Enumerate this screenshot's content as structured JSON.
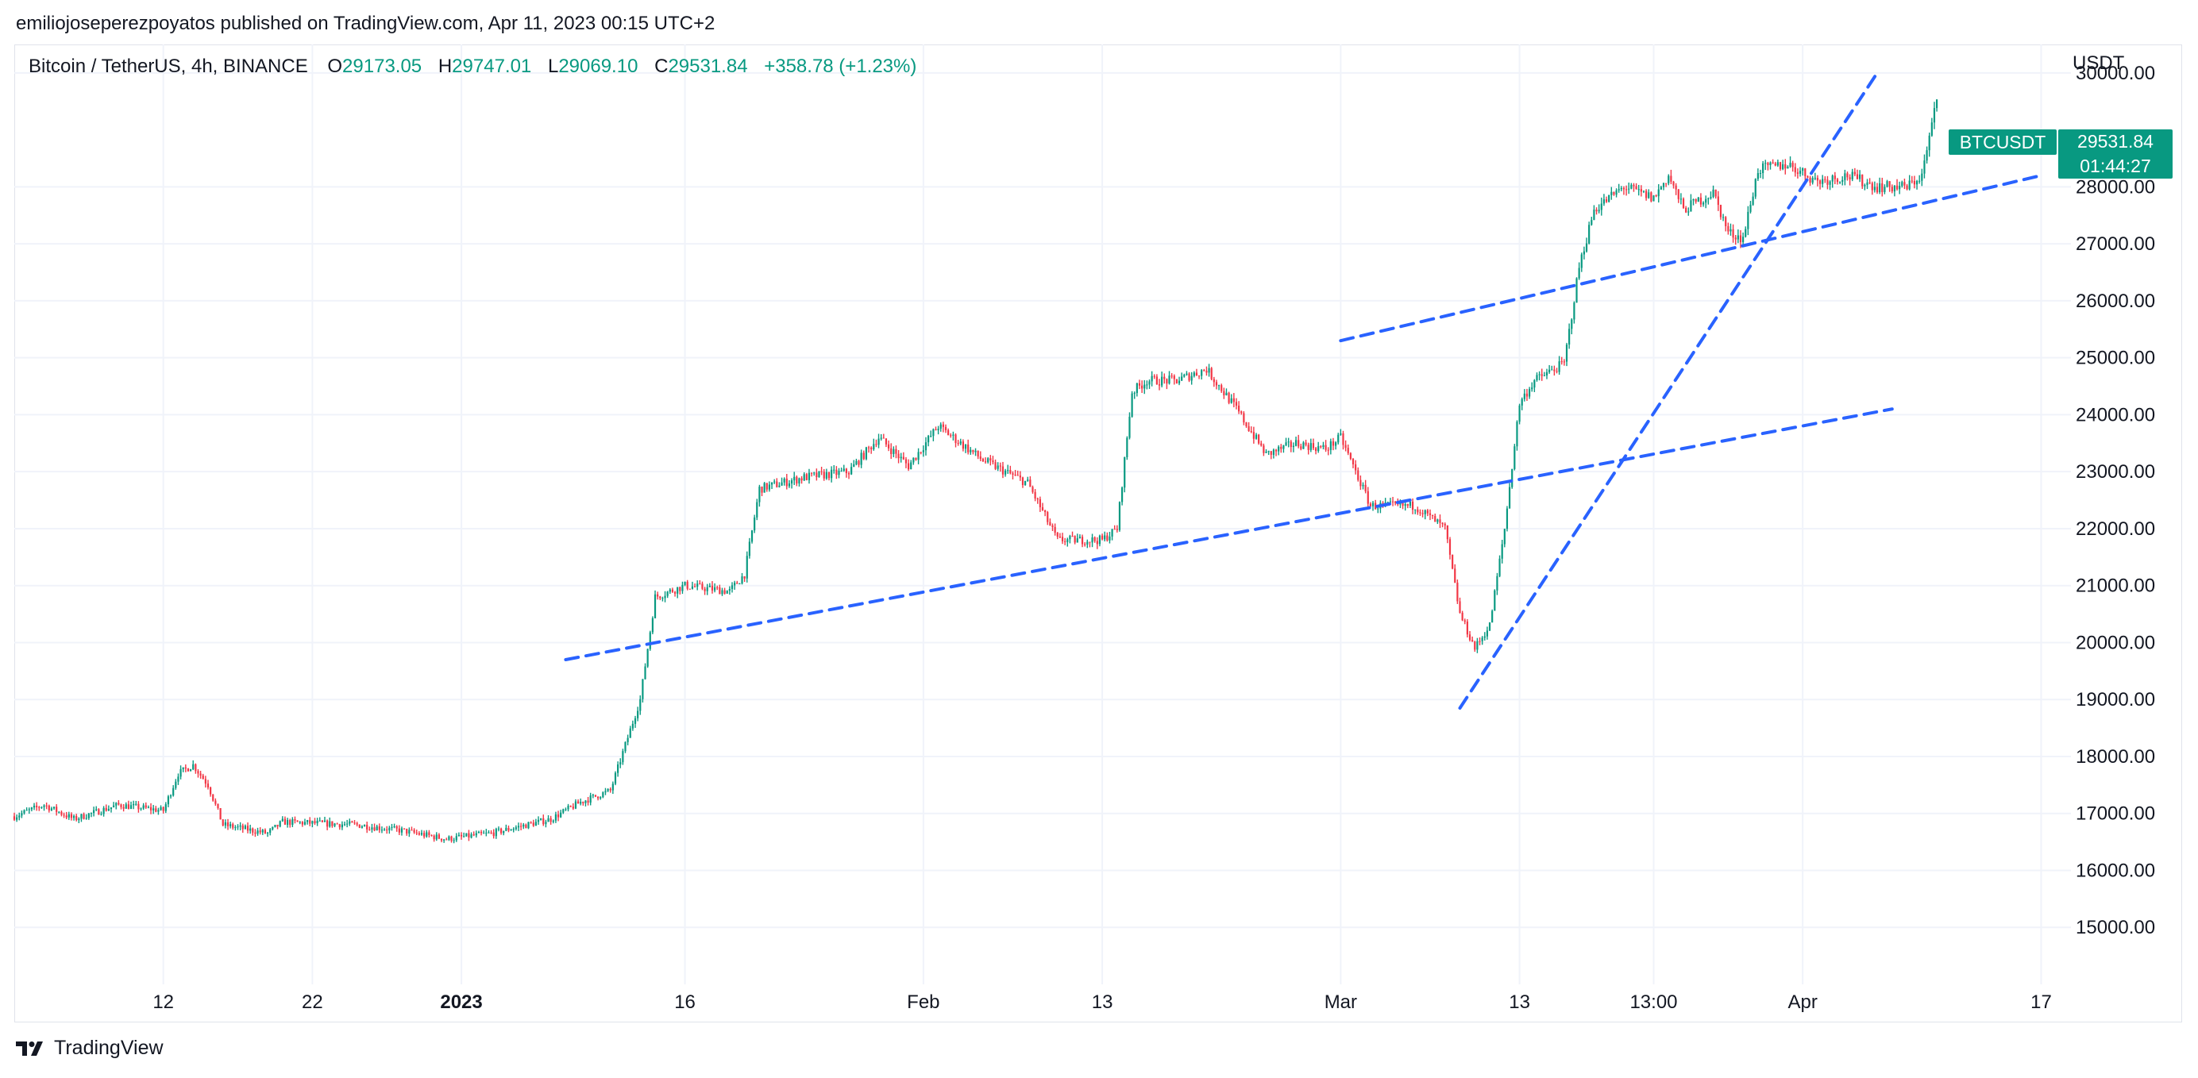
{
  "header": {
    "publisher_line": "emiliojoseperezpoyatos published on TradingView.com, Apr 11, 2023 00:15 UTC+2"
  },
  "legend": {
    "symbol": "Bitcoin / TetherUS, 4h, BINANCE",
    "open_label": "O",
    "open": "29173.05",
    "high_label": "H",
    "high": "29747.01",
    "low_label": "L",
    "low": "29069.10",
    "close_label": "C",
    "close": "29531.84",
    "change": "+358.78 (+1.23%)"
  },
  "price_badge": {
    "symbol": "BTCUSDT",
    "price": "29531.84",
    "countdown": "01:44:27"
  },
  "brand": {
    "name": "TradingView",
    "icon": "tradingview-logo-icon"
  },
  "colors": {
    "up": "#089981",
    "down": "#f23645",
    "trendline": "#2962ff",
    "grid": "#f0f3fa"
  },
  "chart_data": {
    "type": "candlestick",
    "series_name": "BTCUSDT",
    "timeframe": "4h",
    "currency": "USDT",
    "x_range": [
      "2022-12-02",
      "2023-04-19"
    ],
    "ylim": [
      14000,
      30500
    ],
    "grid": true,
    "x_ticks": [
      {
        "date": "2022-12-12",
        "label": "12",
        "bold": false
      },
      {
        "date": "2022-12-22",
        "label": "22",
        "bold": false
      },
      {
        "date": "2023-01-01",
        "label": "2023",
        "bold": true
      },
      {
        "date": "2023-01-16",
        "label": "16",
        "bold": false
      },
      {
        "date": "2023-02-01",
        "label": "Feb",
        "bold": false
      },
      {
        "date": "2023-02-13",
        "label": "13",
        "bold": false
      },
      {
        "date": "2023-03-01",
        "label": "Mar",
        "bold": false
      },
      {
        "date": "2023-03-13",
        "label": "13",
        "bold": false
      },
      {
        "date": "2023-03-22",
        "label": "13:00",
        "bold": false
      },
      {
        "date": "2023-04-01",
        "label": "Apr",
        "bold": false
      },
      {
        "date": "2023-04-17",
        "label": "17",
        "bold": false
      }
    ],
    "y_ticks": [
      {
        "value": 15000,
        "label": "15000.00"
      },
      {
        "value": 16000,
        "label": "16000.00"
      },
      {
        "value": 17000,
        "label": "17000.00"
      },
      {
        "value": 18000,
        "label": "18000.00"
      },
      {
        "value": 19000,
        "label": "19000.00"
      },
      {
        "value": 20000,
        "label": "20000.00"
      },
      {
        "value": 21000,
        "label": "21000.00"
      },
      {
        "value": 22000,
        "label": "22000.00"
      },
      {
        "value": 23000,
        "label": "23000.00"
      },
      {
        "value": 24000,
        "label": "24000.00"
      },
      {
        "value": 25000,
        "label": "25000.00"
      },
      {
        "value": 26000,
        "label": "26000.00"
      },
      {
        "value": 27000,
        "label": "27000.00"
      },
      {
        "value": 28000,
        "label": "28000.00"
      },
      {
        "value": 30000,
        "label": "30000.00"
      }
    ],
    "price_path": [
      [
        "2022-12-02",
        16950
      ],
      [
        "2022-12-04",
        17150
      ],
      [
        "2022-12-06",
        16900
      ],
      [
        "2022-12-09",
        17150
      ],
      [
        "2022-12-12",
        17050
      ],
      [
        "2022-12-13",
        17700
      ],
      [
        "2022-12-14",
        17850
      ],
      [
        "2022-12-15",
        17500
      ],
      [
        "2022-12-16",
        16800
      ],
      [
        "2022-12-19",
        16650
      ],
      [
        "2022-12-20",
        16850
      ],
      [
        "2022-12-25",
        16800
      ],
      [
        "2022-12-28",
        16700
      ],
      [
        "2022-12-31",
        16550
      ],
      [
        "2023-01-03",
        16650
      ],
      [
        "2023-01-07",
        16900
      ],
      [
        "2023-01-09",
        17200
      ],
      [
        "2023-01-11",
        17400
      ],
      [
        "2023-01-12",
        18200
      ],
      [
        "2023-01-13",
        19000
      ],
      [
        "2023-01-14",
        20800
      ],
      [
        "2023-01-16",
        21000
      ],
      [
        "2023-01-19",
        20900
      ],
      [
        "2023-01-20",
        21200
      ],
      [
        "2023-01-21",
        22700
      ],
      [
        "2023-01-24",
        22900
      ],
      [
        "2023-01-27",
        23000
      ],
      [
        "2023-01-29",
        23600
      ],
      [
        "2023-01-31",
        23100
      ],
      [
        "2023-02-02",
        23800
      ],
      [
        "2023-02-05",
        23200
      ],
      [
        "2023-02-08",
        22800
      ],
      [
        "2023-02-10",
        21800
      ],
      [
        "2023-02-13",
        21800
      ],
      [
        "2023-02-14",
        22000
      ],
      [
        "2023-02-15",
        24400
      ],
      [
        "2023-02-16",
        24600
      ],
      [
        "2023-02-18",
        24600
      ],
      [
        "2023-02-20",
        24800
      ],
      [
        "2023-02-22",
        24100
      ],
      [
        "2023-02-24",
        23300
      ],
      [
        "2023-02-26",
        23500
      ],
      [
        "2023-02-28",
        23400
      ],
      [
        "2023-03-01",
        23600
      ],
      [
        "2023-03-03",
        22400
      ],
      [
        "2023-03-06",
        22400
      ],
      [
        "2023-03-08",
        22000
      ],
      [
        "2023-03-09",
        20500
      ],
      [
        "2023-03-10",
        19900
      ],
      [
        "2023-03-11",
        20300
      ],
      [
        "2023-03-12",
        22000
      ],
      [
        "2023-03-13",
        24200
      ],
      [
        "2023-03-14",
        24600
      ],
      [
        "2023-03-16",
        24900
      ],
      [
        "2023-03-17",
        26600
      ],
      [
        "2023-03-18",
        27600
      ],
      [
        "2023-03-20",
        28000
      ],
      [
        "2023-03-22",
        27800
      ],
      [
        "2023-03-23",
        28200
      ],
      [
        "2023-03-24",
        27600
      ],
      [
        "2023-03-26",
        27900
      ],
      [
        "2023-03-27",
        27200
      ],
      [
        "2023-03-28",
        27100
      ],
      [
        "2023-03-29",
        28300
      ],
      [
        "2023-03-31",
        28400
      ],
      [
        "2023-04-02",
        28100
      ],
      [
        "2023-04-04",
        28200
      ],
      [
        "2023-04-06",
        28000
      ],
      [
        "2023-04-08",
        28000
      ],
      [
        "2023-04-09",
        28200
      ],
      [
        "2023-04-10",
        29531.84
      ]
    ],
    "trendlines": [
      {
        "from": [
          "2023-01-08",
          19700
        ],
        "to": [
          "2023-04-07",
          24100
        ],
        "style": "dashed"
      },
      {
        "from": [
          "2023-03-01",
          25300
        ],
        "to": [
          "2023-04-17",
          28200
        ],
        "style": "dashed"
      },
      {
        "from": [
          "2023-03-09",
          18850
        ],
        "to": [
          "2023-04-06",
          30000
        ],
        "style": "dashed"
      }
    ]
  }
}
